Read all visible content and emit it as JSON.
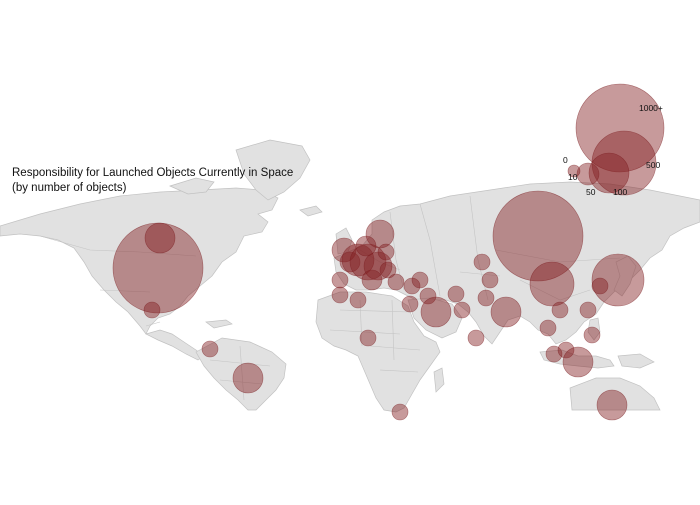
{
  "title": {
    "line1": "Responsibility for Launched Objects Currently in Space",
    "line2": "(by number of objects)"
  },
  "colors": {
    "bubble": "#821e22",
    "land": "#e1e1e1",
    "background": "#ffffff"
  },
  "legend": {
    "entries": [
      {
        "label": "0",
        "value": 0
      },
      {
        "label": "10",
        "value": 10
      },
      {
        "label": "50",
        "value": 50
      },
      {
        "label": "100",
        "value": 100
      },
      {
        "label": "500",
        "value": 500
      },
      {
        "label": "1000+",
        "value": 1000
      }
    ]
  }
}
